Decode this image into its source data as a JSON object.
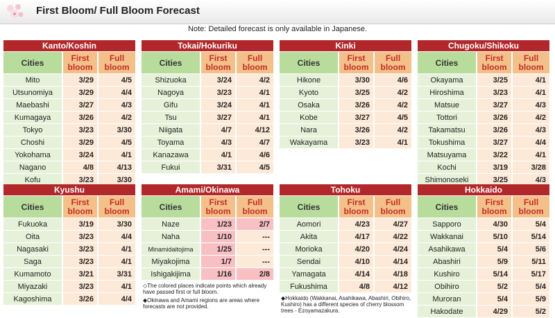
{
  "header": {
    "title": "First Bloom/ Full Bloom Forecast"
  },
  "note": "Note: Detailed forecast is only available in Japanese.",
  "columns": {
    "cities": "Cities",
    "first_line1": "First",
    "first_line2": "bloom",
    "full_line1": "Full",
    "full_line2": "bloom"
  },
  "colors": {
    "region_header": "#b2282a",
    "city_header": "#b8dc9c",
    "bloom_header": "#f3c08a",
    "city_cell": "#e5f2d9",
    "bloom_cell": "#fde9d8",
    "passed_cell": "#f9c0c4"
  },
  "regions": [
    {
      "name": "Kanto/Koshin",
      "rows": [
        {
          "city": "Mito",
          "first": "3/29",
          "full": "4/5"
        },
        {
          "city": "Utsunomiya",
          "first": "3/29",
          "full": "4/4"
        },
        {
          "city": "Maebashi",
          "first": "3/27",
          "full": "4/3"
        },
        {
          "city": "Kumagaya",
          "first": "3/26",
          "full": "4/2"
        },
        {
          "city": "Tokyo",
          "first": "3/23",
          "full": "3/30"
        },
        {
          "city": "Choshi",
          "first": "3/29",
          "full": "4/5"
        },
        {
          "city": "Yokohama",
          "first": "3/24",
          "full": "4/1"
        },
        {
          "city": "Nagano",
          "first": "4/8",
          "full": "4/13"
        },
        {
          "city": "Kofu",
          "first": "3/23",
          "full": "3/30"
        }
      ]
    },
    {
      "name": "Tokai/Hokuriku",
      "rows": [
        {
          "city": "Shizuoka",
          "first": "3/24",
          "full": "4/2"
        },
        {
          "city": "Nagoya",
          "first": "3/23",
          "full": "4/1"
        },
        {
          "city": "Gifu",
          "first": "3/24",
          "full": "4/1"
        },
        {
          "city": "Tsu",
          "first": "3/27",
          "full": "4/1"
        },
        {
          "city": "Niigata",
          "first": "4/7",
          "full": "4/12"
        },
        {
          "city": "Toyama",
          "first": "4/3",
          "full": "4/7"
        },
        {
          "city": "Kanazawa",
          "first": "4/1",
          "full": "4/6"
        },
        {
          "city": "Fukui",
          "first": "3/31",
          "full": "4/5"
        }
      ]
    },
    {
      "name": "Kinki",
      "rows": [
        {
          "city": "Hikone",
          "first": "3/30",
          "full": "4/6"
        },
        {
          "city": "Kyoto",
          "first": "3/25",
          "full": "4/2"
        },
        {
          "city": "Osaka",
          "first": "3/26",
          "full": "4/2"
        },
        {
          "city": "Kobe",
          "first": "3/27",
          "full": "4/5"
        },
        {
          "city": "Nara",
          "first": "3/26",
          "full": "4/2"
        },
        {
          "city": "Wakayama",
          "first": "3/23",
          "full": "4/1"
        }
      ]
    },
    {
      "name": "Chugoku/Shikoku",
      "rows": [
        {
          "city": "Okayama",
          "first": "3/25",
          "full": "4/1"
        },
        {
          "city": "Hiroshima",
          "first": "3/23",
          "full": "4/1"
        },
        {
          "city": "Matsue",
          "first": "3/27",
          "full": "4/3"
        },
        {
          "city": "Tottori",
          "first": "3/26",
          "full": "4/2"
        },
        {
          "city": "Takamatsu",
          "first": "3/26",
          "full": "4/3"
        },
        {
          "city": "Tokushima",
          "first": "3/27",
          "full": "4/4"
        },
        {
          "city": "Matsuyama",
          "first": "3/22",
          "full": "4/1"
        },
        {
          "city": "Kochi",
          "first": "3/19",
          "full": "3/28"
        },
        {
          "city": "Shimonoseki",
          "first": "3/25",
          "full": "4/3"
        }
      ]
    },
    {
      "name": "Kyushu",
      "rows": [
        {
          "city": "Fukuoka",
          "first": "3/19",
          "full": "3/30"
        },
        {
          "city": "Oita",
          "first": "3/23",
          "full": "4/4"
        },
        {
          "city": "Nagasaki",
          "first": "3/23",
          "full": "4/1"
        },
        {
          "city": "Saga",
          "first": "3/23",
          "full": "4/1"
        },
        {
          "city": "Kumamoto",
          "first": "3/21",
          "full": "3/31"
        },
        {
          "city": "Miyazaki",
          "first": "3/23",
          "full": "4/1"
        },
        {
          "city": "Kagoshima",
          "first": "3/26",
          "full": "4/4"
        }
      ]
    },
    {
      "name": "Amami/Okinawa",
      "rows": [
        {
          "city": "Naze",
          "first": "1/23",
          "full": "2/7",
          "first_passed": true,
          "full_passed": true
        },
        {
          "city": "Naha",
          "first": "1/10",
          "full": "---",
          "first_passed": true,
          "full_passed": false
        },
        {
          "city": "Minamidaitojima",
          "first": "1/25",
          "full": "---",
          "first_passed": true,
          "full_passed": false,
          "small": true
        },
        {
          "city": "Miyakojima",
          "first": "1/7",
          "full": "---",
          "first_passed": true,
          "full_passed": false
        },
        {
          "city": "Ishigakijima",
          "first": "1/16",
          "full": "2/8",
          "first_passed": true,
          "full_passed": true
        }
      ],
      "footnote1": "◇The colored places indicate points which already have passed first or full bloom.",
      "footnote2": "◆Okinawa and Amami regions are areas where forecasts are not provided."
    },
    {
      "name": "Tohoku",
      "rows": [
        {
          "city": "Aomori",
          "first": "4/23",
          "full": "4/27"
        },
        {
          "city": "Akita",
          "first": "4/17",
          "full": "4/22"
        },
        {
          "city": "Morioka",
          "first": "4/20",
          "full": "4/24"
        },
        {
          "city": "Sendai",
          "first": "4/10",
          "full": "4/14"
        },
        {
          "city": "Yamagata",
          "first": "4/14",
          "full": "4/18"
        },
        {
          "city": "Fukushima",
          "first": "4/8",
          "full": "4/12"
        }
      ],
      "footnote1": "◆Hokkaido (Wakkanai, Asahikawa, Abashiri, Obihiro, Kushiro) has a different species of cherry blossom trees - Ezoyamazakura."
    },
    {
      "name": "Hokkaido",
      "rows": [
        {
          "city": "Sapporo",
          "first": "4/30",
          "full": "5/4"
        },
        {
          "city": "Wakkanai",
          "first": "5/10",
          "full": "5/14"
        },
        {
          "city": "Asahikawa",
          "first": "5/4",
          "full": "5/6"
        },
        {
          "city": "Abashiri",
          "first": "5/9",
          "full": "5/11"
        },
        {
          "city": "Kushiro",
          "first": "5/14",
          "full": "5/17"
        },
        {
          "city": "Obihiro",
          "first": "5/2",
          "full": "5/4"
        },
        {
          "city": "Muroran",
          "first": "5/4",
          "full": "5/9"
        },
        {
          "city": "Hakodate",
          "first": "4/29",
          "full": "5/2"
        }
      ]
    }
  ]
}
